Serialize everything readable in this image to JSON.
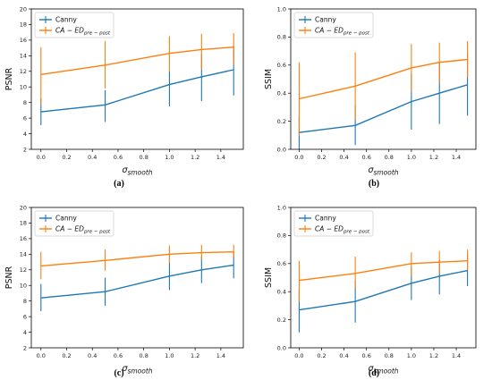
{
  "colors": {
    "canny": "#1f77b4",
    "ca": "#ff7f0e"
  },
  "legend": {
    "canny": "Canny",
    "ca_main": "CA − ED",
    "ca_sub": "pre − post"
  },
  "axis_text": {
    "x_sigma": "σ",
    "x_sub": "smooth"
  },
  "chart_data": [
    {
      "type": "line",
      "caption": "(a)",
      "ylabel": "PSNR",
      "xlabel": "σsmooth",
      "x": [
        0.0,
        0.5,
        1.0,
        1.25,
        1.5
      ],
      "xticks": [
        "0.0",
        "0.2",
        "0.4",
        "0.6",
        "0.8",
        "1.0",
        "1.2",
        "1.4"
      ],
      "yticks": [
        "2",
        "4",
        "6",
        "8",
        "10",
        "12",
        "14",
        "16",
        "18",
        "20"
      ],
      "xlim": [
        -0.075,
        1.575
      ],
      "ylim": [
        2,
        20
      ],
      "legend_position": "upper-left",
      "series": [
        {
          "name": "Canny",
          "values": [
            6.8,
            7.7,
            10.3,
            11.3,
            12.2
          ],
          "err_low": [
            5.1,
            5.5,
            7.5,
            8.2,
            8.9
          ],
          "err_high": [
            8.5,
            9.6,
            12.0,
            14.2,
            15.3
          ]
        },
        {
          "name": "CA − ED pre−post",
          "values": [
            11.6,
            12.8,
            14.3,
            14.8,
            15.1
          ],
          "err_low": [
            7.6,
            9.8,
            12.0,
            12.2,
            12.8
          ],
          "err_high": [
            15.1,
            15.9,
            16.5,
            16.8,
            16.9
          ]
        }
      ]
    },
    {
      "type": "line",
      "caption": "(b)",
      "ylabel": "SSIM",
      "xlabel": "σsmooth",
      "x": [
        0.0,
        0.5,
        1.0,
        1.25,
        1.5
      ],
      "xticks": [
        "0.0",
        "0.2",
        "0.4",
        "0.6",
        "0.8",
        "1.0",
        "1.2",
        "1.4"
      ],
      "yticks": [
        "0.0",
        "0.2",
        "0.4",
        "0.6",
        "0.8",
        "1.0"
      ],
      "xlim": [
        -0.075,
        1.575
      ],
      "ylim": [
        0,
        1.0
      ],
      "legend_position": "upper-left",
      "series": [
        {
          "name": "Canny",
          "values": [
            0.12,
            0.17,
            0.34,
            0.4,
            0.46
          ],
          "err_low": [
            0.0,
            0.03,
            0.14,
            0.18,
            0.24
          ],
          "err_high": [
            0.24,
            0.32,
            0.54,
            0.62,
            0.68
          ]
        },
        {
          "name": "CA − ED pre−post",
          "values": [
            0.36,
            0.45,
            0.58,
            0.62,
            0.64
          ],
          "err_low": [
            0.1,
            0.21,
            0.41,
            0.47,
            0.51
          ],
          "err_high": [
            0.62,
            0.69,
            0.75,
            0.76,
            0.77
          ]
        }
      ]
    },
    {
      "type": "line",
      "caption": "(c)",
      "ylabel": "PSNR",
      "xlabel": "σsmooth",
      "x": [
        0.0,
        0.5,
        1.0,
        1.25,
        1.5
      ],
      "xticks": [
        "0.0",
        "0.2",
        "0.4",
        "0.6",
        "0.8",
        "1.0",
        "1.2",
        "1.4"
      ],
      "yticks": [
        "2",
        "4",
        "6",
        "8",
        "10",
        "12",
        "14",
        "16",
        "18",
        "20"
      ],
      "xlim": [
        -0.075,
        1.575
      ],
      "ylim": [
        2,
        20
      ],
      "legend_position": "upper-left",
      "series": [
        {
          "name": "Canny",
          "values": [
            8.4,
            9.2,
            11.2,
            12.0,
            12.6
          ],
          "err_low": [
            6.7,
            7.4,
            9.4,
            10.3,
            10.9
          ],
          "err_high": [
            10.2,
            11.0,
            13.0,
            13.7,
            14.3
          ]
        },
        {
          "name": "CA − ED pre−post",
          "values": [
            12.5,
            13.2,
            14.0,
            14.2,
            14.3
          ],
          "err_low": [
            10.8,
            11.9,
            12.9,
            13.3,
            13.5
          ],
          "err_high": [
            14.3,
            14.6,
            15.1,
            15.2,
            15.2
          ]
        }
      ]
    },
    {
      "type": "line",
      "caption": "(d)",
      "ylabel": "SSIM",
      "xlabel": "σsmooth",
      "x": [
        0.0,
        0.5,
        1.0,
        1.25,
        1.5
      ],
      "xticks": [
        "0.0",
        "0.2",
        "0.4",
        "0.6",
        "0.8",
        "1.0",
        "1.2",
        "1.4"
      ],
      "yticks": [
        "0.0",
        "0.2",
        "0.4",
        "0.6",
        "0.8",
        "1.0"
      ],
      "xlim": [
        -0.075,
        1.575
      ],
      "ylim": [
        0,
        1.0
      ],
      "legend_position": "upper-left",
      "series": [
        {
          "name": "Canny",
          "values": [
            0.27,
            0.33,
            0.46,
            0.51,
            0.55
          ],
          "err_low": [
            0.11,
            0.18,
            0.34,
            0.38,
            0.44
          ],
          "err_high": [
            0.42,
            0.48,
            0.58,
            0.63,
            0.66
          ]
        },
        {
          "name": "CA − ED pre−post",
          "values": [
            0.48,
            0.53,
            0.6,
            0.61,
            0.62
          ],
          "err_low": [
            0.33,
            0.42,
            0.51,
            0.53,
            0.55
          ],
          "err_high": [
            0.62,
            0.65,
            0.68,
            0.69,
            0.7
          ]
        }
      ]
    }
  ]
}
